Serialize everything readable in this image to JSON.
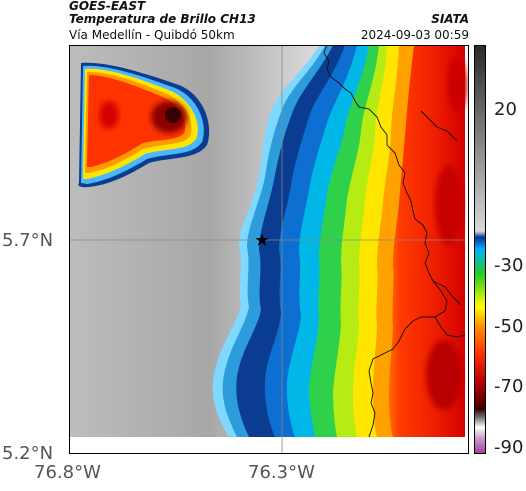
{
  "header": {
    "satellite": "GOES-EAST",
    "product": "Temperatura de Brillo CH13",
    "organization": "SIATA",
    "route": "Vía Medellín - Quibdó 50km",
    "datetime": "2024-09-03 00:59"
  },
  "map": {
    "lat_ticks": [
      "5.7°N",
      "5.2°N"
    ],
    "lon_ticks": [
      "76.8°W",
      "76.3°W"
    ],
    "marker": "star",
    "crosshair": true
  },
  "colorbar": {
    "ticks": [
      "20",
      "-30",
      "-50",
      "-70",
      "-90"
    ],
    "stops": [
      "#9b3fa0",
      "#c9a0c9",
      "#ffffff",
      "#7a7a7a",
      "#3a0000",
      "#b00000",
      "#ff2a00",
      "#ff8c00",
      "#ffff00",
      "#22cc22",
      "#00a0ff",
      "#003a9a",
      "#c8c8c8",
      "#404040"
    ]
  }
}
